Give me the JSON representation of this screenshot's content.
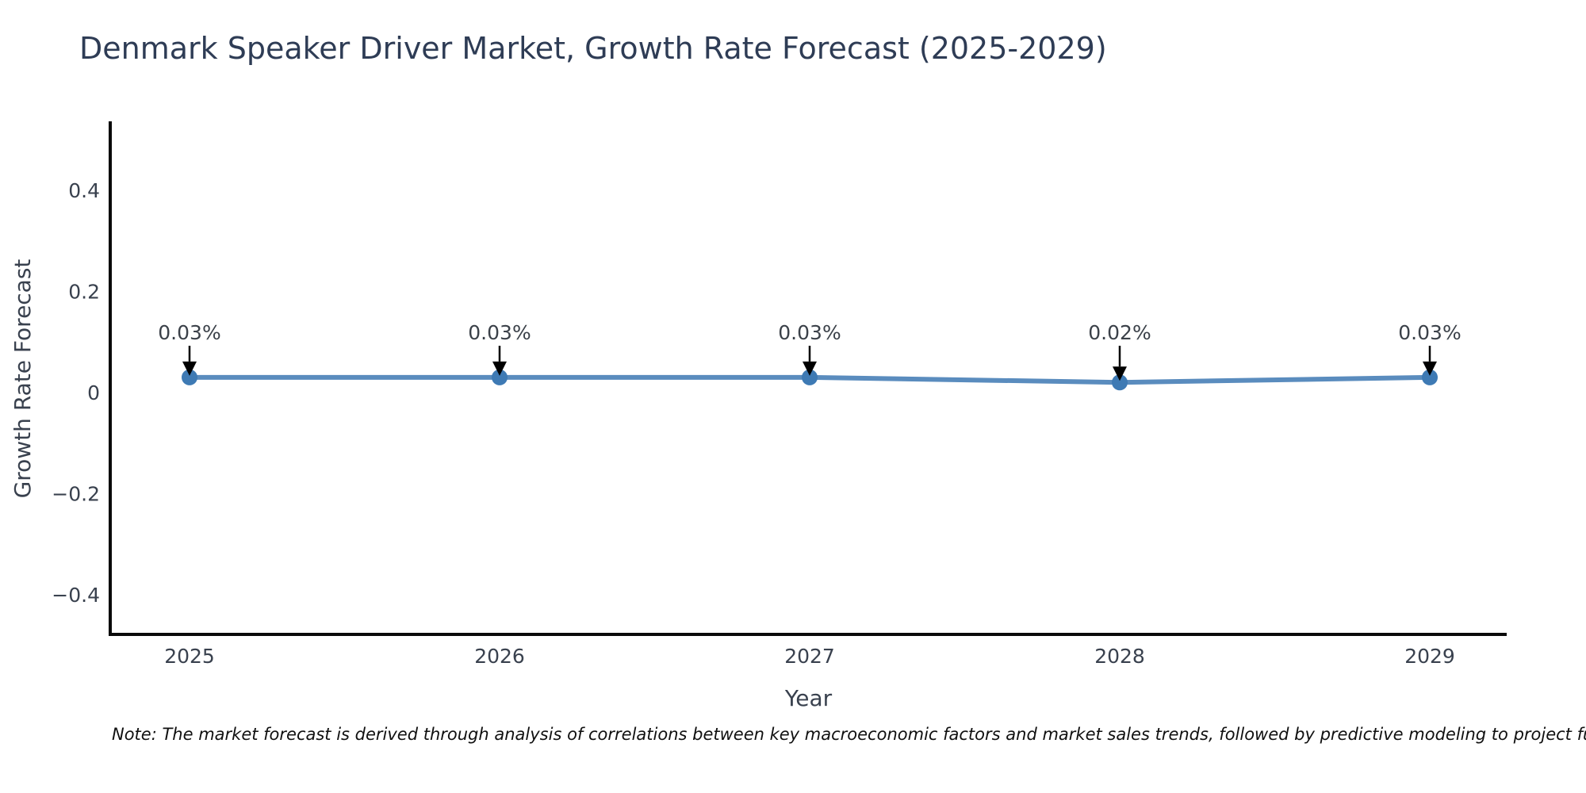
{
  "chart_data": {
    "type": "line",
    "title": "Denmark Speaker Driver Market, Growth Rate Forecast (2025-2029)",
    "xlabel": "Year",
    "ylabel": "Growth Rate Forecast",
    "x": [
      "2025",
      "2026",
      "2027",
      "2028",
      "2029"
    ],
    "values": [
      0.03,
      0.03,
      0.03,
      0.02,
      0.03
    ],
    "point_labels": [
      "0.03%",
      "0.03%",
      "0.03%",
      "0.02%",
      "0.03%"
    ],
    "yticks": {
      "values": [
        0.4,
        0.2,
        0,
        -0.2,
        -0.4
      ],
      "labels": [
        "0.4",
        "0.2",
        "0",
        "−0.2",
        "−0.4"
      ]
    },
    "ylim": [
      -0.48,
      0.53
    ],
    "grid": false,
    "legend_position": "none",
    "line_color": "#5a8cbe",
    "marker_color": "#3e7ab4",
    "spine_color": "#0a0a0a",
    "arrow_color": "#000000",
    "note": "Note: The market forecast is derived through analysis of correlations between key macroeconomic factors and market sales trends, followed by predictive modeling to project future sales."
  }
}
